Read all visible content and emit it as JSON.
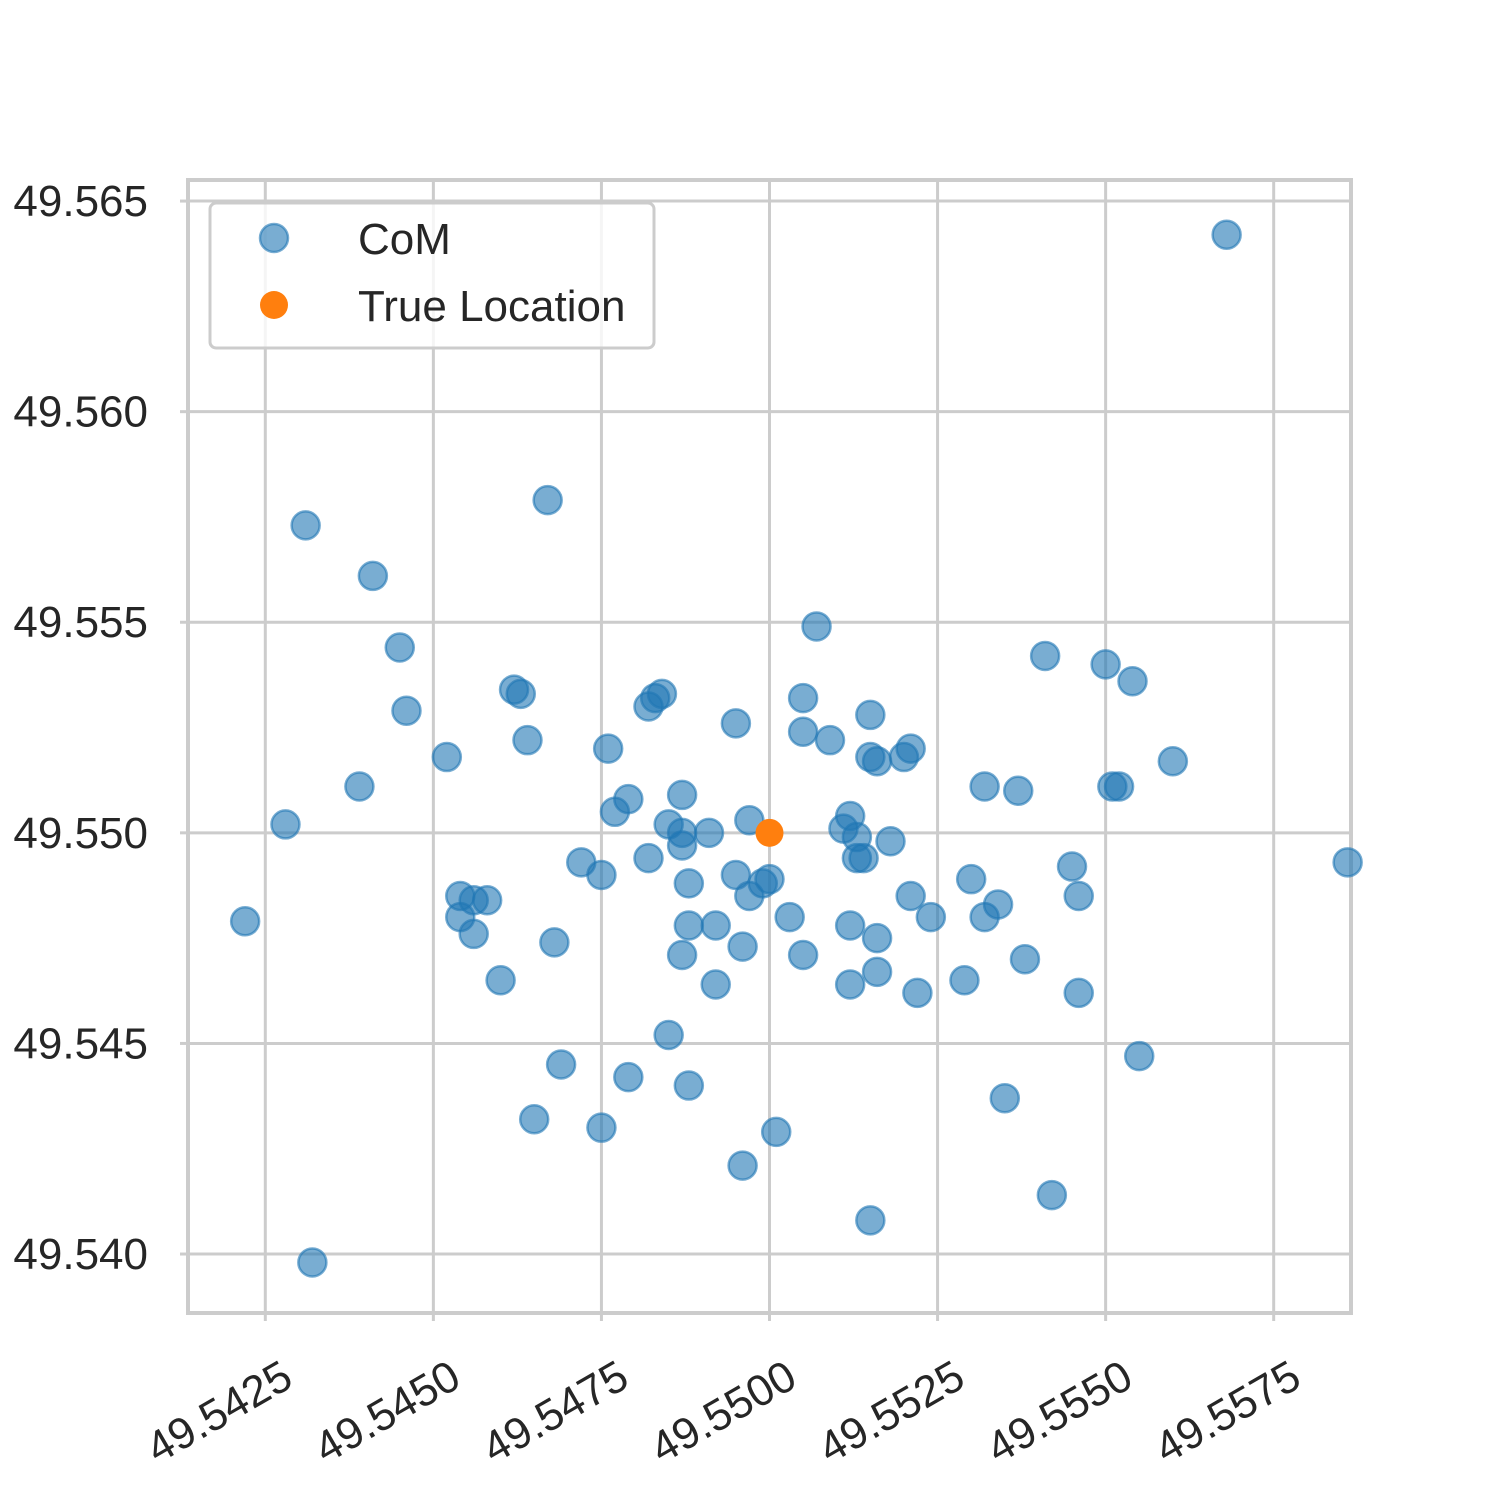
{
  "chart_data": {
    "type": "scatter",
    "title": "",
    "xlabel": "",
    "ylabel": "",
    "xlim": [
      49.54135,
      49.55865
    ],
    "ylim": [
      49.5386,
      49.5655
    ],
    "xticks": [
      49.5425,
      49.545,
      49.5475,
      49.55,
      49.5525,
      49.555,
      49.5575
    ],
    "xtick_labels": [
      "49.5425",
      "49.5450",
      "49.5475",
      "49.5500",
      "49.5525",
      "49.5550",
      "49.5575"
    ],
    "yticks": [
      49.54,
      49.545,
      49.55,
      49.555,
      49.56,
      49.565
    ],
    "ytick_labels": [
      "49.540",
      "49.545",
      "49.550",
      "49.555",
      "49.560",
      "49.565"
    ],
    "grid": true,
    "legend_position": "top-left",
    "series": [
      {
        "name": "CoM",
        "color": "#1f77b4",
        "alpha": 0.6,
        "points": [
          [
            49.5422,
            49.5479
          ],
          [
            49.5428,
            49.5502
          ],
          [
            49.5431,
            49.5573
          ],
          [
            49.5432,
            49.5398
          ],
          [
            49.5441,
            49.5561
          ],
          [
            49.5439,
            49.5511
          ],
          [
            49.5445,
            49.5544
          ],
          [
            49.5446,
            49.5529
          ],
          [
            49.5452,
            49.5518
          ],
          [
            49.5454,
            49.5485
          ],
          [
            49.5456,
            49.5484
          ],
          [
            49.5454,
            49.548
          ],
          [
            49.5456,
            49.5476
          ],
          [
            49.5458,
            49.5484
          ],
          [
            49.546,
            49.5465
          ],
          [
            49.5462,
            49.5534
          ],
          [
            49.5463,
            49.5533
          ],
          [
            49.5464,
            49.5522
          ],
          [
            49.5465,
            49.5432
          ],
          [
            49.5467,
            49.5579
          ],
          [
            49.5468,
            49.5474
          ],
          [
            49.5469,
            49.5445
          ],
          [
            49.5472,
            49.5493
          ],
          [
            49.5475,
            49.549
          ],
          [
            49.5475,
            49.543
          ],
          [
            49.5476,
            49.552
          ],
          [
            49.5477,
            49.5505
          ],
          [
            49.5479,
            49.5508
          ],
          [
            49.5479,
            49.5442
          ],
          [
            49.5482,
            49.553
          ],
          [
            49.5483,
            49.5532
          ],
          [
            49.5484,
            49.5533
          ],
          [
            49.5482,
            49.5494
          ],
          [
            49.5485,
            49.5502
          ],
          [
            49.5485,
            49.5452
          ],
          [
            49.5487,
            49.55
          ],
          [
            49.5487,
            49.5497
          ],
          [
            49.5487,
            49.5509
          ],
          [
            49.5488,
            49.5488
          ],
          [
            49.5488,
            49.5478
          ],
          [
            49.5487,
            49.5471
          ],
          [
            49.5488,
            49.544
          ],
          [
            49.5491,
            49.55
          ],
          [
            49.5492,
            49.5478
          ],
          [
            49.5492,
            49.5464
          ],
          [
            49.5495,
            49.5526
          ],
          [
            49.5495,
            49.549
          ],
          [
            49.5496,
            49.5473
          ],
          [
            49.5496,
            49.5421
          ],
          [
            49.5497,
            49.5503
          ],
          [
            49.5497,
            49.5485
          ],
          [
            49.5499,
            49.5488
          ],
          [
            49.55,
            49.5489
          ],
          [
            49.5501,
            49.5429
          ],
          [
            49.5503,
            49.548
          ],
          [
            49.5505,
            49.5532
          ],
          [
            49.5505,
            49.5524
          ],
          [
            49.5505,
            49.5471
          ],
          [
            49.5507,
            49.5549
          ],
          [
            49.5509,
            49.5522
          ],
          [
            49.5511,
            49.5501
          ],
          [
            49.5512,
            49.5504
          ],
          [
            49.5512,
            49.5478
          ],
          [
            49.5512,
            49.5464
          ],
          [
            49.5513,
            49.5499
          ],
          [
            49.5513,
            49.5494
          ],
          [
            49.5514,
            49.5494
          ],
          [
            49.5515,
            49.5528
          ],
          [
            49.5515,
            49.5518
          ],
          [
            49.5515,
            49.5408
          ],
          [
            49.5516,
            49.5517
          ],
          [
            49.5516,
            49.5475
          ],
          [
            49.5516,
            49.5467
          ],
          [
            49.5518,
            49.5498
          ],
          [
            49.552,
            49.5518
          ],
          [
            49.5521,
            49.552
          ],
          [
            49.5521,
            49.5485
          ],
          [
            49.5522,
            49.5462
          ],
          [
            49.5524,
            49.548
          ],
          [
            49.5529,
            49.5465
          ],
          [
            49.553,
            49.5489
          ],
          [
            49.5532,
            49.5511
          ],
          [
            49.5532,
            49.548
          ],
          [
            49.5534,
            49.5483
          ],
          [
            49.5535,
            49.5437
          ],
          [
            49.5537,
            49.551
          ],
          [
            49.5538,
            49.547
          ],
          [
            49.5541,
            49.5542
          ],
          [
            49.5542,
            49.5414
          ],
          [
            49.5545,
            49.5492
          ],
          [
            49.5546,
            49.5485
          ],
          [
            49.5546,
            49.5462
          ],
          [
            49.555,
            49.554
          ],
          [
            49.5551,
            49.5511
          ],
          [
            49.5552,
            49.5511
          ],
          [
            49.5554,
            49.5536
          ],
          [
            49.5555,
            49.5447
          ],
          [
            49.556,
            49.5517
          ],
          [
            49.5568,
            49.5642
          ],
          [
            49.5586,
            49.5493
          ]
        ]
      },
      {
        "name": "True Location",
        "color": "#ff7f0e",
        "alpha": 1,
        "points": [
          [
            49.55,
            49.55
          ]
        ]
      }
    ]
  }
}
